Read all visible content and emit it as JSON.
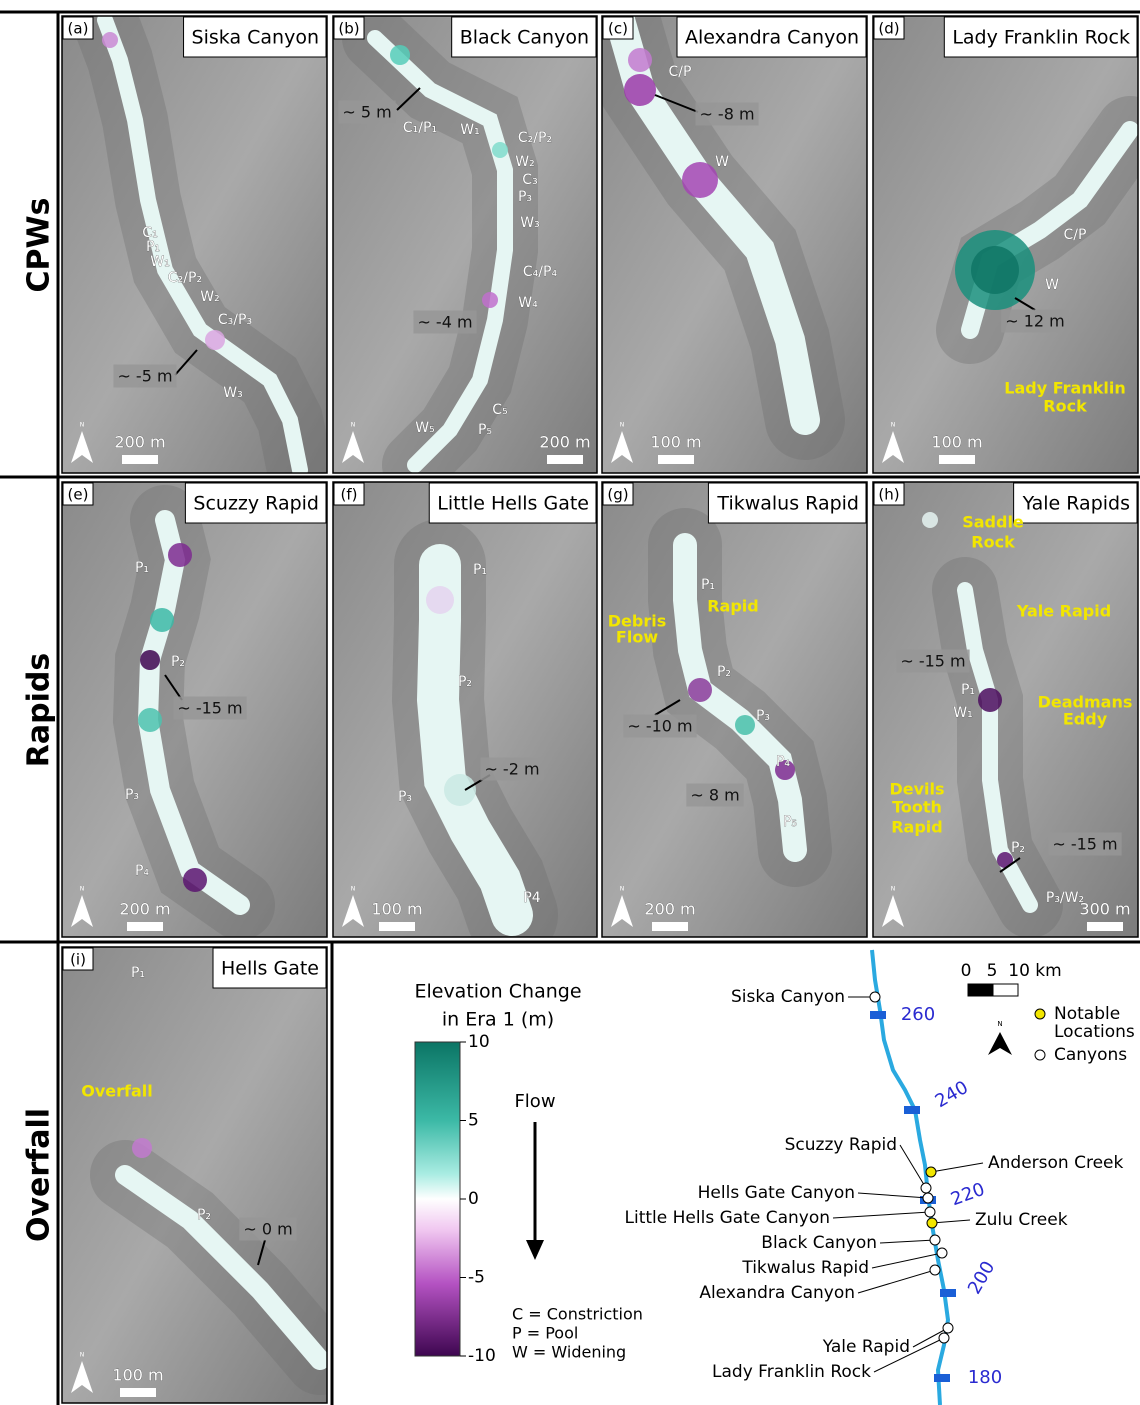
{
  "row_labels": [
    "CPWs",
    "Rapids",
    "Overfall"
  ],
  "north": "N",
  "panels": [
    {
      "letter": "(a)",
      "title": "Siska Canyon",
      "scale": "200 m",
      "labels": [
        "C₁",
        "P₁",
        "W₁",
        "C₂/P₂",
        "W₂",
        "C₃/P₃",
        "~ -5 m",
        "W₃"
      ]
    },
    {
      "letter": "(b)",
      "title": "Black Canyon",
      "scale": "200 m",
      "labels": [
        "~ 5 m",
        "C₁/P₁",
        "W₁",
        "C₂/P₂",
        "W₂",
        "C₃",
        "P₃",
        "W₃",
        "C₄/P₄",
        "W₄",
        "~ -4 m",
        "C₅",
        "P₅",
        "W₅"
      ]
    },
    {
      "letter": "(c)",
      "title": "Alexandra Canyon",
      "scale": "100 m",
      "labels": [
        "C/P",
        "~ -8 m",
        "W"
      ]
    },
    {
      "letter": "(d)",
      "title": "Lady Franklin Rock",
      "scale": "100 m",
      "labels": [
        "C/P",
        "W",
        "~ 12 m",
        "Lady Franklin",
        "Rock"
      ]
    },
    {
      "letter": "(e)",
      "title": "Scuzzy Rapid",
      "scale": "200 m",
      "labels": [
        "P₁",
        "P₂",
        "~ -15 m",
        "P₃",
        "P₄"
      ]
    },
    {
      "letter": "(f)",
      "title": "Little Hells Gate",
      "scale": "100 m",
      "labels": [
        "P₁",
        "P₂",
        "~ -2 m",
        "P₃",
        "P4"
      ]
    },
    {
      "letter": "(g)",
      "title": "Tikwalus Rapid",
      "scale": "200 m",
      "labels": [
        "P₁",
        "Rapid",
        "Debris",
        "Flow",
        "P₂",
        "~ -10 m",
        "P₃",
        "P₄",
        "~ 8 m",
        "P₅"
      ]
    },
    {
      "letter": "(h)",
      "title": "Yale Rapids",
      "scale": "300 m",
      "labels": [
        "Saddle",
        "Rock",
        "Yale Rapid",
        "~ -15 m",
        "P₁",
        "W₁",
        "Deadmans",
        "Eddy",
        "Devils",
        "Tooth",
        "Rapid",
        "P₂",
        "~ -15 m",
        "P₃/W₂"
      ]
    },
    {
      "letter": "(i)",
      "title": "Hells Gate",
      "scale": "100 m",
      "labels": [
        "P₁",
        "Overfall",
        "P₂",
        "~ 0 m"
      ]
    }
  ],
  "legend": {
    "title": [
      "Elevation Change",
      "in Era 1 (m)"
    ],
    "ticks": [
      10,
      5,
      0,
      -5,
      -10
    ]
  },
  "flow": "Flow",
  "key": [
    "C = Constriction",
    "P = Pool",
    "W = Widening"
  ],
  "overview": {
    "scale": [
      "0",
      "5",
      "10 km"
    ],
    "legend": [
      "Notable",
      "Locations",
      "Canyons"
    ],
    "km": [
      260,
      240,
      220,
      200,
      180
    ],
    "places": [
      "Siska Canyon",
      "Scuzzy Rapid",
      "Anderson Creek",
      "Hells Gate Canyon",
      "Little Hells Gate Canyon",
      "Zulu Creek",
      "Black Canyon",
      "Tikwalus Rapid",
      "Alexandra Canyon",
      "Yale Rapid",
      "Lady Franklin Rock"
    ]
  }
}
